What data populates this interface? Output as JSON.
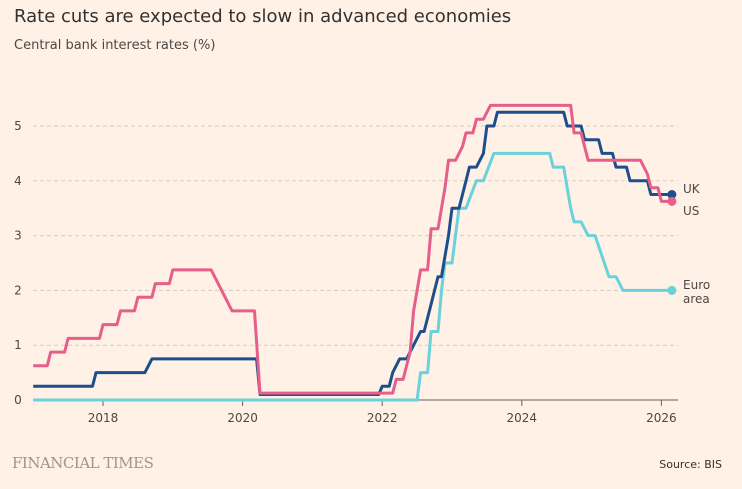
{
  "header": {
    "title": "Rate cuts are expected to slow in advanced economies",
    "subtitle": "Central bank interest rates (%)"
  },
  "footer": {
    "brand": "FINANCIAL TIMES",
    "source": "Source: BIS"
  },
  "chart_data": {
    "type": "line",
    "title": "Rate cuts are expected to slow in advanced economies",
    "subtitle": "Central bank interest rates (%)",
    "xlabel": "",
    "ylabel": "",
    "xlim": [
      2017.0,
      2026.25
    ],
    "ylim": [
      0,
      5.6
    ],
    "x_ticks": [
      2018,
      2020,
      2022,
      2024,
      2026
    ],
    "y_ticks": [
      0,
      1,
      2,
      3,
      4,
      5
    ],
    "grid": "horizontal-dashed",
    "legend": "inline-right",
    "series": [
      {
        "name": "US",
        "label": "US",
        "color": "#e55f8a",
        "points": [
          [
            2017.0,
            0.625
          ],
          [
            2017.2,
            0.625
          ],
          [
            2017.25,
            0.875
          ],
          [
            2017.45,
            0.875
          ],
          [
            2017.5,
            1.125
          ],
          [
            2017.95,
            1.125
          ],
          [
            2018.0,
            1.375
          ],
          [
            2018.2,
            1.375
          ],
          [
            2018.25,
            1.625
          ],
          [
            2018.45,
            1.625
          ],
          [
            2018.5,
            1.875
          ],
          [
            2018.7,
            1.875
          ],
          [
            2018.75,
            2.125
          ],
          [
            2018.95,
            2.125
          ],
          [
            2019.0,
            2.375
          ],
          [
            2019.55,
            2.375
          ],
          [
            2019.85,
            1.625
          ],
          [
            2020.17,
            1.625
          ],
          [
            2020.25,
            0.125
          ],
          [
            2022.15,
            0.125
          ],
          [
            2022.2,
            0.375
          ],
          [
            2022.3,
            0.375
          ],
          [
            2022.4,
            0.875
          ],
          [
            2022.45,
            1.625
          ],
          [
            2022.55,
            2.375
          ],
          [
            2022.65,
            2.375
          ],
          [
            2022.7,
            3.125
          ],
          [
            2022.8,
            3.125
          ],
          [
            2022.9,
            3.875
          ],
          [
            2022.95,
            4.375
          ],
          [
            2023.05,
            4.375
          ],
          [
            2023.15,
            4.625
          ],
          [
            2023.2,
            4.875
          ],
          [
            2023.3,
            4.875
          ],
          [
            2023.35,
            5.125
          ],
          [
            2023.45,
            5.125
          ],
          [
            2023.55,
            5.375
          ],
          [
            2024.7,
            5.375
          ],
          [
            2024.75,
            4.875
          ],
          [
            2024.85,
            4.875
          ],
          [
            2024.95,
            4.375
          ],
          [
            2025.7,
            4.375
          ],
          [
            2025.8,
            4.125
          ],
          [
            2025.85,
            3.875
          ],
          [
            2025.95,
            3.875
          ],
          [
            2026.0,
            3.625
          ],
          [
            2026.15,
            3.625
          ]
        ]
      },
      {
        "name": "UK",
        "label": "UK",
        "color": "#1e4e8c",
        "points": [
          [
            2017.0,
            0.25
          ],
          [
            2017.85,
            0.25
          ],
          [
            2017.9,
            0.5
          ],
          [
            2018.6,
            0.5
          ],
          [
            2018.7,
            0.75
          ],
          [
            2020.2,
            0.75
          ],
          [
            2020.25,
            0.1
          ],
          [
            2021.95,
            0.1
          ],
          [
            2022.0,
            0.25
          ],
          [
            2022.1,
            0.25
          ],
          [
            2022.15,
            0.5
          ],
          [
            2022.25,
            0.75
          ],
          [
            2022.35,
            0.75
          ],
          [
            2022.45,
            1.0
          ],
          [
            2022.55,
            1.25
          ],
          [
            2022.6,
            1.25
          ],
          [
            2022.7,
            1.75
          ],
          [
            2022.8,
            2.25
          ],
          [
            2022.85,
            2.25
          ],
          [
            2022.95,
            3.0
          ],
          [
            2023.0,
            3.5
          ],
          [
            2023.1,
            3.5
          ],
          [
            2023.2,
            4.0
          ],
          [
            2023.25,
            4.25
          ],
          [
            2023.35,
            4.25
          ],
          [
            2023.45,
            4.5
          ],
          [
            2023.5,
            5.0
          ],
          [
            2023.6,
            5.0
          ],
          [
            2023.65,
            5.25
          ],
          [
            2024.6,
            5.25
          ],
          [
            2024.65,
            5.0
          ],
          [
            2024.85,
            5.0
          ],
          [
            2024.9,
            4.75
          ],
          [
            2025.1,
            4.75
          ],
          [
            2025.15,
            4.5
          ],
          [
            2025.3,
            4.5
          ],
          [
            2025.35,
            4.25
          ],
          [
            2025.5,
            4.25
          ],
          [
            2025.55,
            4.0
          ],
          [
            2025.8,
            4.0
          ],
          [
            2025.85,
            3.75
          ],
          [
            2026.15,
            3.75
          ]
        ]
      },
      {
        "name": "Euro area",
        "label": "Euro\narea",
        "color": "#6ad2da",
        "points": [
          [
            2017.0,
            0.0
          ],
          [
            2022.5,
            0.0
          ],
          [
            2022.55,
            0.5
          ],
          [
            2022.65,
            0.5
          ],
          [
            2022.7,
            1.25
          ],
          [
            2022.8,
            1.25
          ],
          [
            2022.85,
            2.0
          ],
          [
            2022.9,
            2.5
          ],
          [
            2023.0,
            2.5
          ],
          [
            2023.1,
            3.5
          ],
          [
            2023.2,
            3.5
          ],
          [
            2023.35,
            4.0
          ],
          [
            2023.45,
            4.0
          ],
          [
            2023.6,
            4.5
          ],
          [
            2024.4,
            4.5
          ],
          [
            2024.45,
            4.25
          ],
          [
            2024.6,
            4.25
          ],
          [
            2024.7,
            3.5
          ],
          [
            2024.75,
            3.25
          ],
          [
            2024.85,
            3.25
          ],
          [
            2024.95,
            3.0
          ],
          [
            2025.05,
            3.0
          ],
          [
            2025.25,
            2.25
          ],
          [
            2025.35,
            2.25
          ],
          [
            2025.45,
            2.0
          ],
          [
            2026.15,
            2.0
          ]
        ]
      }
    ]
  }
}
